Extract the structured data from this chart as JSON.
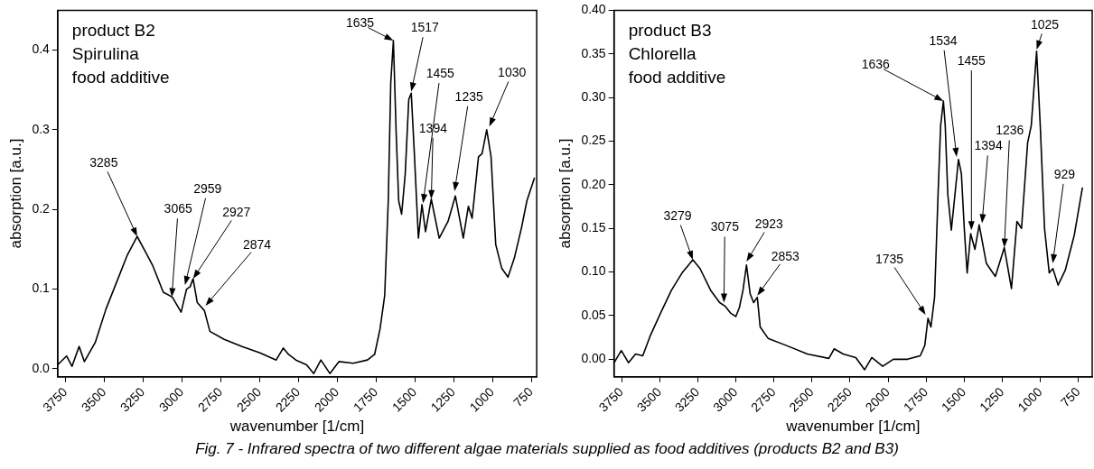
{
  "chart_data": [
    {
      "type": "line",
      "xlabel": "wavenumber [1/cm]",
      "ylabel": "absorption [a.u.]",
      "xlim": [
        3800,
        715
      ],
      "ylim": [
        -0.01,
        0.45
      ],
      "xticks": [
        3750,
        3500,
        3250,
        3000,
        2750,
        2500,
        2250,
        2000,
        1750,
        1500,
        1250,
        1000,
        750
      ],
      "yticks": [
        {
          "value": 0,
          "label": "0.0"
        },
        0.1,
        0.2,
        0.3,
        0.4
      ],
      "grid": false,
      "legend": false,
      "marker": "none",
      "line_style": "solid",
      "series": [
        {
          "color": "#000000",
          "x": [
            3800,
            3743,
            3708,
            3662,
            3628,
            3558,
            3489,
            3420,
            3351,
            3288,
            3235,
            3189,
            3120,
            3062,
            3005,
            2970,
            2947,
            2928,
            2901,
            2855,
            2820,
            2728,
            2612,
            2497,
            2393,
            2347,
            2313,
            2266,
            2197,
            2151,
            2105,
            2047,
            1989,
            1897,
            1805,
            1759,
            1724,
            1694,
            1671,
            1655,
            1638,
            1620,
            1604,
            1585,
            1562,
            1539,
            1523,
            1504,
            1477,
            1454,
            1431,
            1394,
            1343,
            1286,
            1239,
            1188,
            1155,
            1131,
            1090,
            1067,
            1037,
            1009,
            979,
            940,
            900,
            859,
            813,
            778,
            729
          ],
          "values": [
            0.005,
            0.016,
            0.003,
            0.028,
            0.009,
            0.033,
            0.075,
            0.109,
            0.143,
            0.166,
            0.147,
            0.13,
            0.096,
            0.09,
            0.071,
            0.1,
            0.103,
            0.113,
            0.083,
            0.073,
            0.047,
            0.037,
            0.028,
            0.02,
            0.011,
            0.026,
            0.018,
            0.011,
            0.005,
            -0.006,
            0.011,
            -0.006,
            0.009,
            0.007,
            0.011,
            0.018,
            0.05,
            0.092,
            0.211,
            0.359,
            0.412,
            0.295,
            0.211,
            0.194,
            0.244,
            0.338,
            0.346,
            0.274,
            0.164,
            0.206,
            0.172,
            0.213,
            0.164,
            0.185,
            0.217,
            0.164,
            0.204,
            0.189,
            0.266,
            0.27,
            0.3,
            0.266,
            0.156,
            0.126,
            0.115,
            0.139,
            0.177,
            0.211,
            0.24
          ]
        }
      ],
      "annotations": [
        "product B2",
        "Spirulina",
        "food additive",
        {
          "text": "3285",
          "x": 3288,
          "y": 0.166
        },
        {
          "text": "3065",
          "x": 3065,
          "y": 0.09
        },
        {
          "text": "2959",
          "x": 2980,
          "y": 0.105
        },
        {
          "text": "2927",
          "x": 2928,
          "y": 0.113
        },
        {
          "text": "2874",
          "x": 2848,
          "y": 0.079
        },
        {
          "text": "1635",
          "x": 1638,
          "y": 0.412
        },
        {
          "text": "1517",
          "x": 1523,
          "y": 0.348
        },
        {
          "text": "1455",
          "x": 1447,
          "y": 0.208
        },
        {
          "text": "1394",
          "x": 1394,
          "y": 0.213
        },
        {
          "text": "1235",
          "x": 1244,
          "y": 0.223
        },
        {
          "text": "1030",
          "x": 1020,
          "y": 0.304
        }
      ]
    },
    {
      "type": "line",
      "xlabel": "wavenumber [1/cm]",
      "ylabel": "absorption [a.u.]",
      "xlim": [
        3800,
        660
      ],
      "ylim": [
        -0.02,
        0.4
      ],
      "xticks": [
        3750,
        3500,
        3250,
        3000,
        2750,
        2500,
        2250,
        2000,
        1750,
        1500,
        1250,
        1000,
        750
      ],
      "yticks": [
        {
          "value": 0,
          "label": "0.00"
        },
        0.05,
        {
          "value": 0.1,
          "label": "0.10"
        },
        0.15,
        {
          "value": 0.2,
          "label": "0.20"
        },
        0.25,
        {
          "value": 0.3,
          "label": "0.30"
        },
        0.35,
        {
          "value": 0.4,
          "label": "0.40"
        }
      ],
      "grid": false,
      "legend": false,
      "marker": "none",
      "line_style": "solid",
      "series": [
        {
          "color": "#000000",
          "x": [
            3799,
            3752,
            3705,
            3658,
            3611,
            3564,
            3494,
            3423,
            3353,
            3282,
            3235,
            3165,
            3106,
            3071,
            3035,
            3000,
            2977,
            2953,
            2930,
            2906,
            2883,
            2859,
            2840,
            2788,
            2671,
            2530,
            2389,
            2354,
            2295,
            2212,
            2154,
            2107,
            2036,
            1966,
            1872,
            1789,
            1759,
            1738,
            1719,
            1695,
            1672,
            1655,
            1637,
            1625,
            1608,
            1585,
            1561,
            1538,
            1519,
            1500,
            1481,
            1458,
            1430,
            1402,
            1355,
            1296,
            1237,
            1190,
            1154,
            1124,
            1084,
            1060,
            1025,
            1001,
            973,
            942,
            918,
            884,
            837,
            778,
            724
          ],
          "values": [
            -0.004,
            0.01,
            -0.004,
            0.006,
            0.004,
            0.026,
            0.053,
            0.079,
            0.099,
            0.114,
            0.104,
            0.079,
            0.065,
            0.061,
            0.053,
            0.049,
            0.059,
            0.079,
            0.108,
            0.075,
            0.065,
            0.071,
            0.037,
            0.024,
            0.016,
            0.006,
            0.001,
            0.012,
            0.006,
            0.002,
            -0.012,
            0.002,
            -0.008,
            0.0,
            0.0,
            0.004,
            0.016,
            0.047,
            0.037,
            0.071,
            0.189,
            0.268,
            0.296,
            0.268,
            0.189,
            0.148,
            0.189,
            0.229,
            0.213,
            0.15,
            0.099,
            0.144,
            0.126,
            0.154,
            0.11,
            0.095,
            0.128,
            0.081,
            0.158,
            0.15,
            0.248,
            0.268,
            0.353,
            0.268,
            0.15,
            0.099,
            0.104,
            0.085,
            0.102,
            0.142,
            0.197
          ]
        }
      ],
      "annotations": [
        "product B3",
        "Chlorella",
        "food additive",
        {
          "text": "3279",
          "x": 3282,
          "y": 0.114
        },
        {
          "text": "3075",
          "x": 3078,
          "y": 0.065
        },
        {
          "text": "2923",
          "x": 2930,
          "y": 0.112
        },
        {
          "text": "2853",
          "x": 2859,
          "y": 0.073
        },
        {
          "text": "1735",
          "x": 1754,
          "y": 0.051
        },
        {
          "text": "1636",
          "x": 1637,
          "y": 0.296
        },
        {
          "text": "1534",
          "x": 1550,
          "y": 0.232
        },
        {
          "text": "1455",
          "x": 1453,
          "y": 0.148
        },
        {
          "text": "1394",
          "x": 1383,
          "y": 0.156
        },
        {
          "text": "1236",
          "x": 1237,
          "y": 0.128
        },
        {
          "text": "1025",
          "x": 1025,
          "y": 0.355
        },
        {
          "text": "929",
          "x": 919,
          "y": 0.11
        }
      ]
    },
    {
      "type": "other",
      "annotations": [
        "Fig. 7 - Infrared spectra of two different algae materials supplied as food additives (products B2 and B3)"
      ]
    }
  ]
}
